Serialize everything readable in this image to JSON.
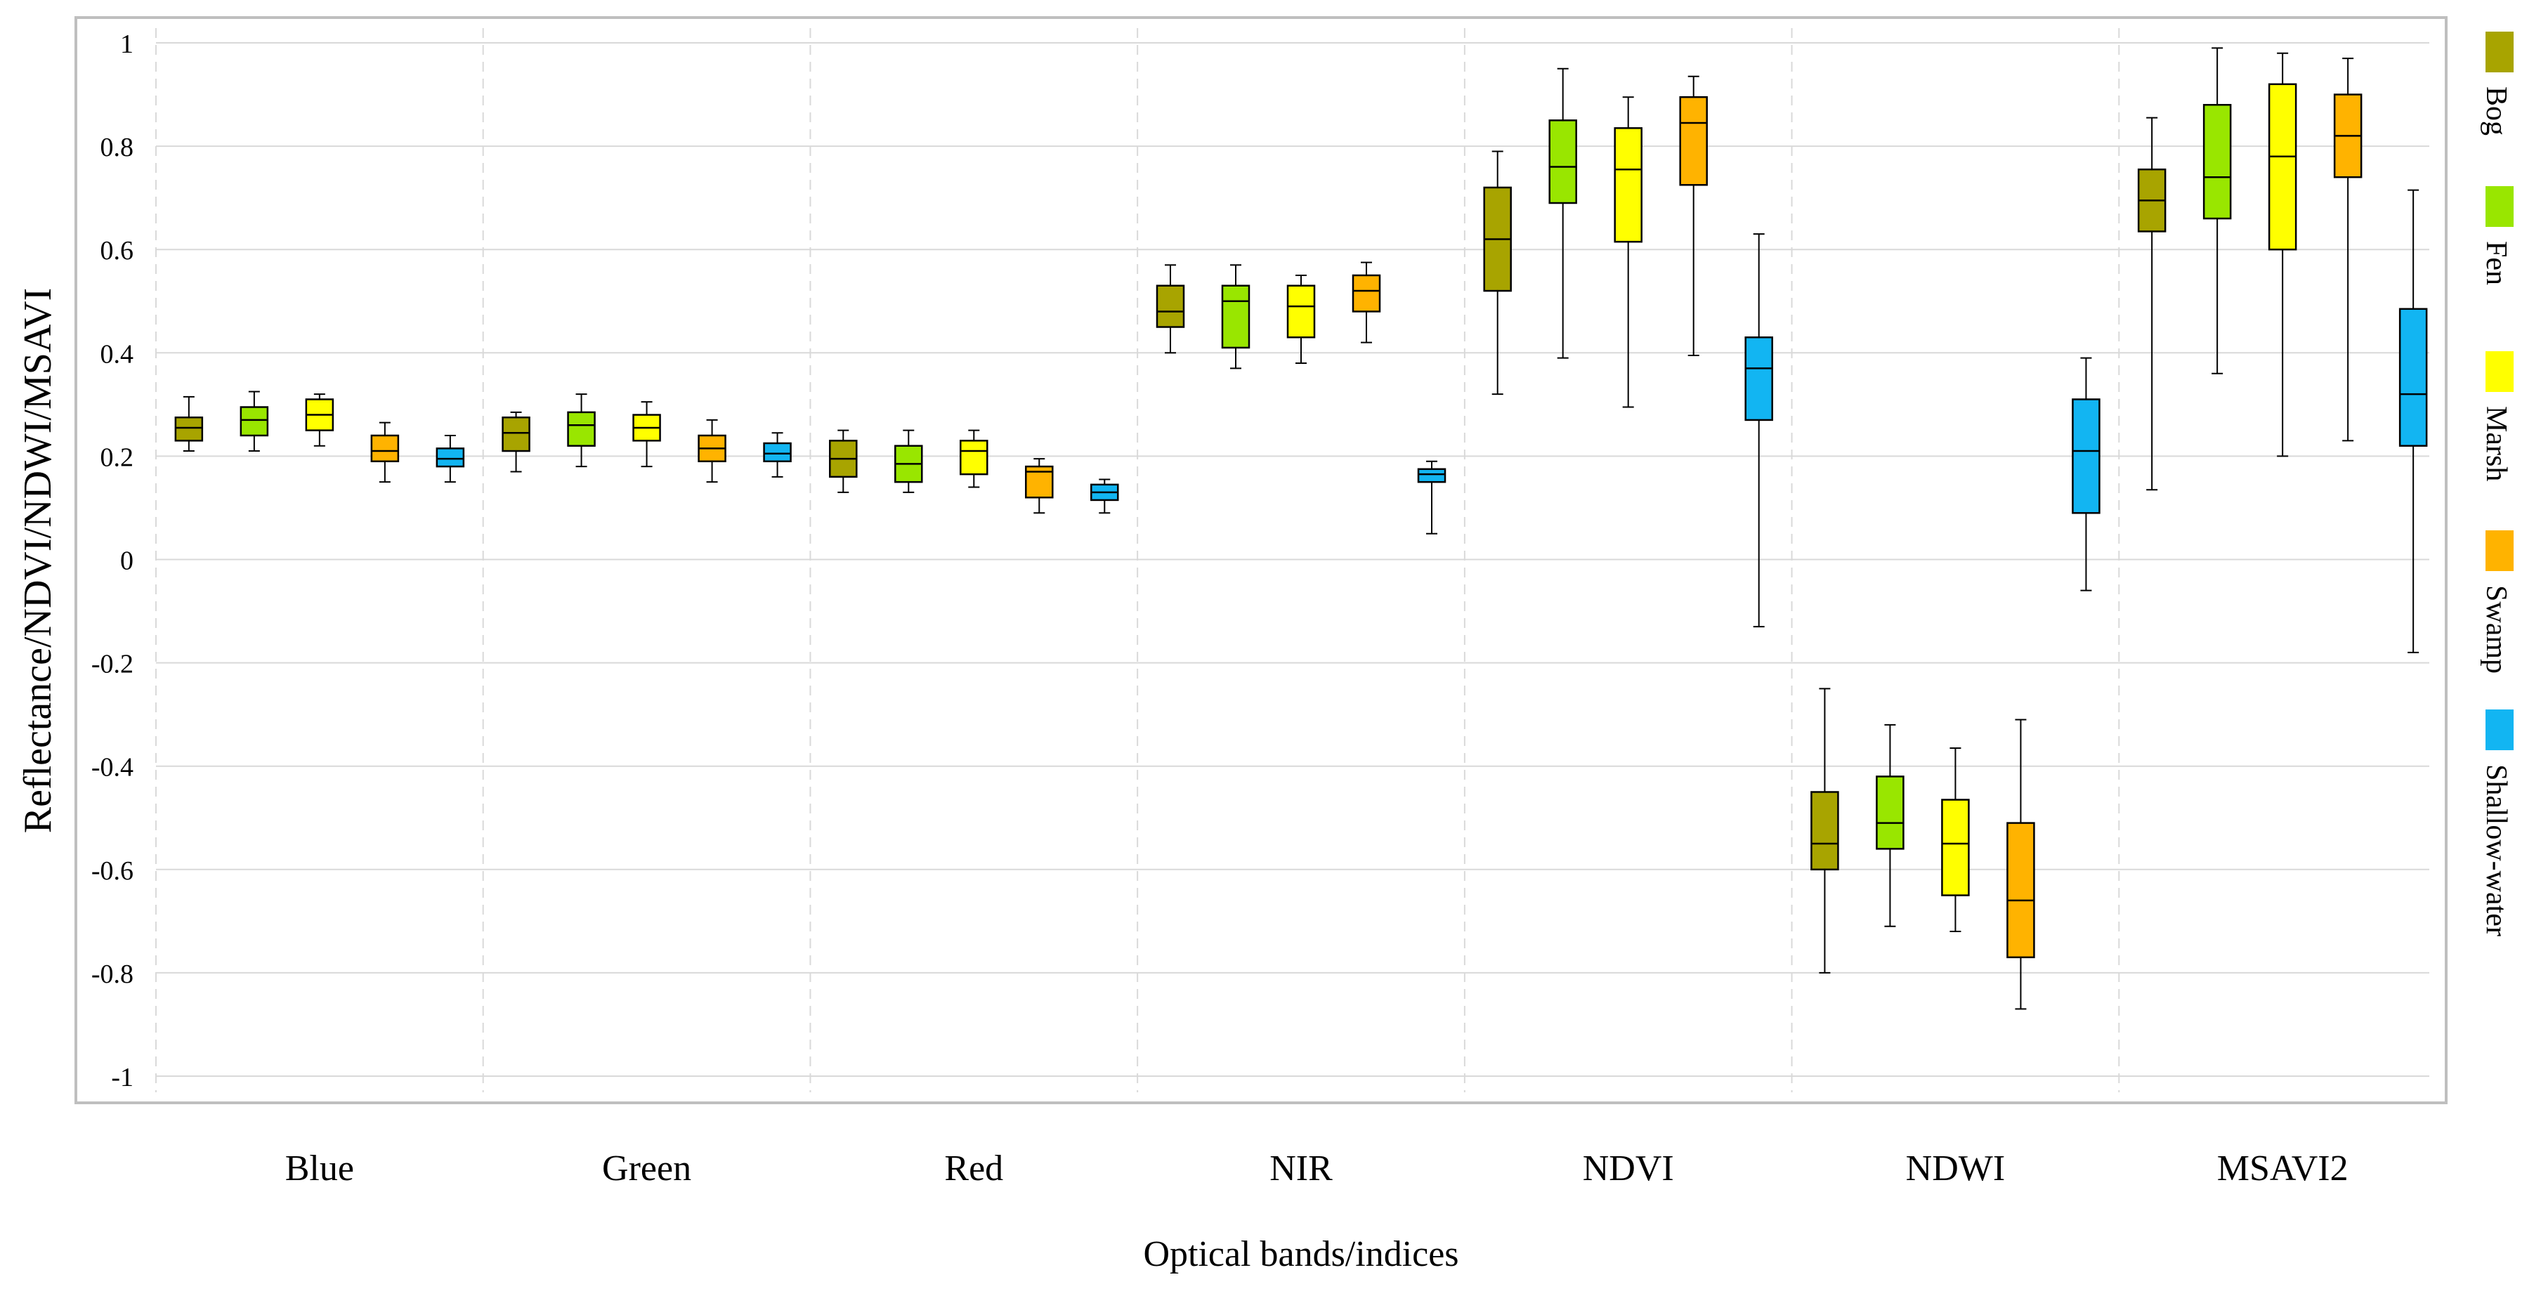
{
  "chart_data": {
    "type": "boxplot",
    "xlabel": "Optical bands/indices",
    "ylabel": "Reflectance/NDVI/NDWI/MSAVI",
    "ylim": [
      -1,
      1
    ],
    "yticks": [
      {
        "value": 1,
        "label": "1"
      },
      {
        "value": 0.8,
        "label": "0.8"
      },
      {
        "value": 0.6,
        "label": "0.6"
      },
      {
        "value": 0.4,
        "label": "0.4"
      },
      {
        "value": 0.2,
        "label": "0.2"
      },
      {
        "value": 0,
        "label": "0"
      },
      {
        "value": -0.2,
        "label": "-0.2"
      },
      {
        "value": -0.4,
        "label": "-0.4"
      },
      {
        "value": -0.6,
        "label": "-0.6"
      },
      {
        "value": -0.8,
        "label": "-0.8"
      },
      {
        "value": -1,
        "label": "-1"
      }
    ],
    "grid": true,
    "legend_position": "right",
    "categories": [
      "Blue",
      "Green",
      "Red",
      "NIR",
      "NDVI",
      "NDWI",
      "MSAVI2"
    ],
    "series": [
      {
        "name": "Bog",
        "color": "#a8a400",
        "boxes": [
          {
            "min": 0.21,
            "q1": 0.23,
            "median": 0.255,
            "q3": 0.275,
            "max": 0.315
          },
          {
            "min": 0.17,
            "q1": 0.21,
            "median": 0.245,
            "q3": 0.275,
            "max": 0.285
          },
          {
            "min": 0.13,
            "q1": 0.16,
            "median": 0.195,
            "q3": 0.23,
            "max": 0.25
          },
          {
            "min": 0.4,
            "q1": 0.45,
            "median": 0.48,
            "q3": 0.53,
            "max": 0.57
          },
          {
            "min": 0.32,
            "q1": 0.52,
            "median": 0.62,
            "q3": 0.72,
            "max": 0.79
          },
          {
            "min": -0.8,
            "q1": -0.6,
            "median": -0.55,
            "q3": -0.45,
            "max": -0.25
          },
          {
            "min": 0.135,
            "q1": 0.635,
            "median": 0.695,
            "q3": 0.755,
            "max": 0.855
          }
        ]
      },
      {
        "name": "Fen",
        "color": "#99e600",
        "boxes": [
          {
            "min": 0.21,
            "q1": 0.24,
            "median": 0.27,
            "q3": 0.295,
            "max": 0.325
          },
          {
            "min": 0.18,
            "q1": 0.22,
            "median": 0.26,
            "q3": 0.285,
            "max": 0.32
          },
          {
            "min": 0.13,
            "q1": 0.15,
            "median": 0.185,
            "q3": 0.22,
            "max": 0.25
          },
          {
            "min": 0.37,
            "q1": 0.41,
            "median": 0.5,
            "q3": 0.53,
            "max": 0.57
          },
          {
            "min": 0.39,
            "q1": 0.69,
            "median": 0.76,
            "q3": 0.85,
            "max": 0.95
          },
          {
            "min": -0.71,
            "q1": -0.56,
            "median": -0.51,
            "q3": -0.42,
            "max": -0.32
          },
          {
            "min": 0.36,
            "q1": 0.66,
            "median": 0.74,
            "q3": 0.88,
            "max": 0.99
          }
        ]
      },
      {
        "name": "Marsh",
        "color": "#ffff00",
        "boxes": [
          {
            "min": 0.22,
            "q1": 0.25,
            "median": 0.28,
            "q3": 0.31,
            "max": 0.32
          },
          {
            "min": 0.18,
            "q1": 0.23,
            "median": 0.255,
            "q3": 0.28,
            "max": 0.305
          },
          {
            "min": 0.14,
            "q1": 0.165,
            "median": 0.21,
            "q3": 0.23,
            "max": 0.25
          },
          {
            "min": 0.38,
            "q1": 0.43,
            "median": 0.49,
            "q3": 0.53,
            "max": 0.55
          },
          {
            "min": 0.295,
            "q1": 0.615,
            "median": 0.755,
            "q3": 0.835,
            "max": 0.895
          },
          {
            "min": -0.72,
            "q1": -0.65,
            "median": -0.55,
            "q3": -0.465,
            "max": -0.365
          },
          {
            "min": 0.2,
            "q1": 0.6,
            "median": 0.78,
            "q3": 0.92,
            "max": 0.98
          }
        ]
      },
      {
        "name": "Swamp",
        "color": "#ffb300",
        "boxes": [
          {
            "min": 0.15,
            "q1": 0.19,
            "median": 0.21,
            "q3": 0.24,
            "max": 0.265
          },
          {
            "min": 0.15,
            "q1": 0.19,
            "median": 0.215,
            "q3": 0.24,
            "max": 0.27
          },
          {
            "min": 0.09,
            "q1": 0.12,
            "median": 0.17,
            "q3": 0.18,
            "max": 0.195
          },
          {
            "min": 0.42,
            "q1": 0.48,
            "median": 0.52,
            "q3": 0.55,
            "max": 0.575
          },
          {
            "min": 0.395,
            "q1": 0.725,
            "median": 0.845,
            "q3": 0.895,
            "max": 0.935
          },
          {
            "min": -0.87,
            "q1": -0.77,
            "median": -0.66,
            "q3": -0.51,
            "max": -0.31
          },
          {
            "min": 0.23,
            "q1": 0.74,
            "median": 0.82,
            "q3": 0.9,
            "max": 0.97
          }
        ]
      },
      {
        "name": "Shallow-water",
        "color": "#12b5f2",
        "boxes": [
          {
            "min": 0.15,
            "q1": 0.18,
            "median": 0.195,
            "q3": 0.215,
            "max": 0.24
          },
          {
            "min": 0.16,
            "q1": 0.19,
            "median": 0.205,
            "q3": 0.225,
            "max": 0.245
          },
          {
            "min": 0.09,
            "q1": 0.115,
            "median": 0.13,
            "q3": 0.145,
            "max": 0.155
          },
          {
            "min": 0.05,
            "q1": 0.15,
            "median": 0.165,
            "q3": 0.175,
            "max": 0.19
          },
          {
            "min": -0.13,
            "q1": 0.27,
            "median": 0.37,
            "q3": 0.43,
            "max": 0.63
          },
          {
            "min": -0.06,
            "q1": 0.09,
            "median": 0.21,
            "q3": 0.31,
            "max": 0.39
          },
          {
            "min": -0.18,
            "q1": 0.22,
            "median": 0.32,
            "q3": 0.485,
            "max": 0.715
          }
        ]
      }
    ]
  }
}
